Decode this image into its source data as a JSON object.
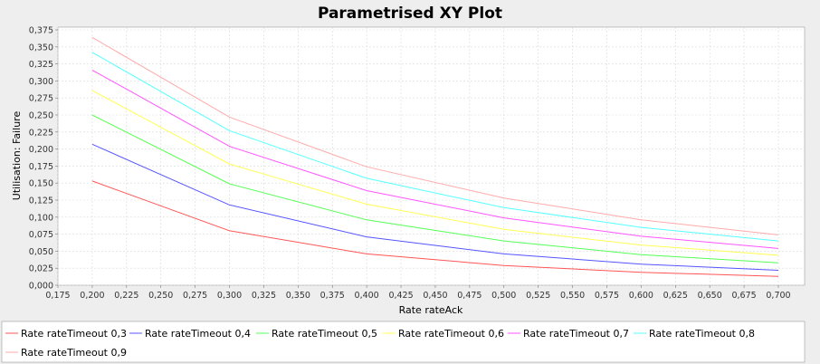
{
  "chart_data": {
    "type": "line",
    "title": "Parametrised XY Plot",
    "xlabel": "Rate rateAck",
    "ylabel": "Utilisation: Failure",
    "xlim": [
      0.175,
      0.7
    ],
    "ylim": [
      0.0,
      0.375
    ],
    "x_ticks": [
      "0,175",
      "0,200",
      "0,225",
      "0,250",
      "0,275",
      "0,300",
      "0,325",
      "0,350",
      "0,375",
      "0,400",
      "0,425",
      "0,450",
      "0,475",
      "0,500",
      "0,525",
      "0,550",
      "0,575",
      "0,600",
      "0,625",
      "0,650",
      "0,675",
      "0,700"
    ],
    "y_ticks": [
      "0,000",
      "0,025",
      "0,050",
      "0,075",
      "0,100",
      "0,125",
      "0,150",
      "0,175",
      "0,200",
      "0,225",
      "0,250",
      "0,275",
      "0,300",
      "0,325",
      "0,350",
      "0,375"
    ],
    "grid": true,
    "legend_position": "bottom",
    "x": [
      0.2,
      0.3,
      0.4,
      0.5,
      0.6,
      0.7
    ],
    "series": [
      {
        "name": "Rate rateTimeout 0,3",
        "color": "#ff5555",
        "values": [
          0.153,
          0.08,
          0.046,
          0.029,
          0.019,
          0.013
        ]
      },
      {
        "name": "Rate rateTimeout 0,4",
        "color": "#5555ff",
        "values": [
          0.207,
          0.118,
          0.071,
          0.046,
          0.031,
          0.022
        ]
      },
      {
        "name": "Rate rateTimeout 0,5",
        "color": "#55ff55",
        "values": [
          0.25,
          0.149,
          0.096,
          0.065,
          0.045,
          0.033
        ]
      },
      {
        "name": "Rate rateTimeout 0,6",
        "color": "#ffff55",
        "values": [
          0.286,
          0.178,
          0.119,
          0.082,
          0.059,
          0.044
        ]
      },
      {
        "name": "Rate rateTimeout 0,7",
        "color": "#ff55ff",
        "values": [
          0.316,
          0.204,
          0.139,
          0.099,
          0.072,
          0.054
        ]
      },
      {
        "name": "Rate rateTimeout 0,8",
        "color": "#55ffff",
        "values": [
          0.342,
          0.227,
          0.157,
          0.114,
          0.085,
          0.065
        ]
      },
      {
        "name": "Rate rateTimeout 0,9",
        "color": "#ffaaaa",
        "values": [
          0.364,
          0.247,
          0.174,
          0.128,
          0.096,
          0.074
        ]
      }
    ]
  }
}
